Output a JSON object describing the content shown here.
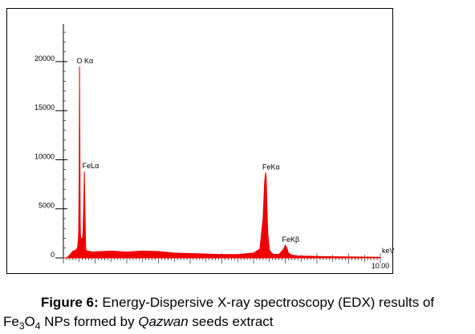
{
  "chart_data": {
    "type": "line",
    "xlabel": "keV",
    "xlim": [
      0,
      10.0
    ],
    "ylim": [
      0,
      23500
    ],
    "x_tick_labels": [
      "10.00"
    ],
    "y_ticks": [
      0,
      5000,
      10000,
      15000,
      20000
    ],
    "y_tick_labels": [
      "0",
      "5000",
      "10000",
      "15000",
      "20000"
    ],
    "grid": false,
    "fill_color": "#ee0000",
    "series": [
      {
        "x": [
          0.0,
          0.12,
          0.2,
          0.3,
          0.4,
          0.45,
          0.48,
          0.5,
          0.51,
          0.52,
          0.53,
          0.54,
          0.56,
          0.6,
          0.62,
          0.64,
          0.66,
          0.68,
          0.7,
          0.705,
          0.71,
          0.72,
          0.74,
          0.78,
          0.9,
          1.2,
          1.5,
          2.0,
          2.5,
          3.0,
          3.5,
          4.0,
          4.5,
          5.0,
          5.5,
          6.0,
          6.2,
          6.3,
          6.35,
          6.38,
          6.4,
          6.42,
          6.45,
          6.5,
          6.6,
          6.8,
          6.95,
          7.0,
          7.05,
          7.1,
          7.2,
          7.4,
          8.0,
          8.5,
          9.0,
          9.5,
          10.0
        ],
        "y": [
          0,
          0,
          300,
          700,
          800,
          1100,
          2400,
          9000,
          19500,
          12000,
          4000,
          2200,
          2000,
          1900,
          2600,
          5000,
          8800,
          5000,
          1500,
          1000,
          900,
          800,
          700,
          700,
          600,
          650,
          700,
          600,
          700,
          650,
          500,
          450,
          400,
          350,
          350,
          500,
          900,
          4000,
          7800,
          8700,
          8200,
          5500,
          2500,
          800,
          400,
          350,
          900,
          1300,
          1000,
          500,
          300,
          200,
          150,
          120,
          100,
          80,
          60
        ]
      }
    ],
    "annotations": [
      {
        "text": "O Kα",
        "x": 0.52,
        "y": 19500
      },
      {
        "text": "FeLα",
        "x": 0.7,
        "y": 8800
      },
      {
        "text": "FeKα",
        "x": 6.38,
        "y": 8700
      },
      {
        "text": "FeKβ",
        "x": 7.0,
        "y": 1300
      }
    ]
  },
  "caption": {
    "figure_label": "Figure 6:",
    "line1_text": " Energy-Dispersive X-ray spectroscopy (EDX) results of",
    "formula_fe": "Fe",
    "sub_3": "3",
    "formula_o": "O",
    "sub_4": "4",
    "line2_mid": " NPs formed by ",
    "plant_name": "Qazwan",
    "line2_end": " seeds extract"
  }
}
